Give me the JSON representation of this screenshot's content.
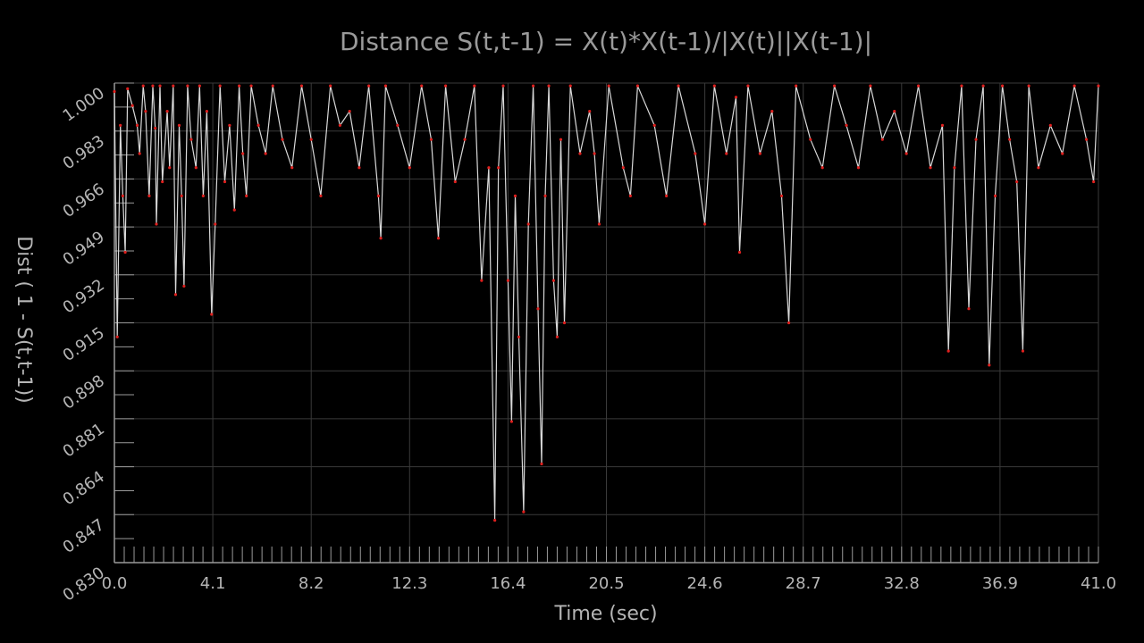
{
  "chart_data": {
    "type": "line",
    "title": "Distance S(t,t-1) = X(t)*X(t-1)/|X(t)||X(t-1)|",
    "xlabel": "Time (sec)",
    "ylabel": "Dist ( 1 - S(t,t-1))",
    "xlim": [
      0.0,
      41.0
    ],
    "ylim": [
      0.83,
      1.0
    ],
    "x_ticks": [
      "0.0",
      "4.1",
      "8.2",
      "12.3",
      "16.4",
      "20.5",
      "24.6",
      "28.7",
      "32.8",
      "36.9",
      "41.0"
    ],
    "y_ticks": [
      "0.830",
      "0.847",
      "0.864",
      "0.881",
      "0.898",
      "0.915",
      "0.932",
      "0.949",
      "0.966",
      "0.983",
      "1.000"
    ],
    "grid": true,
    "colors": {
      "background": "#000000",
      "line": "#d9d9d9",
      "markers": "#e0201e",
      "grid": "#3a3a3a",
      "axis": "#9a9a9a",
      "text": "#b5b5b5"
    },
    "series": [
      {
        "points": [
          [
            0.0,
            0.997
          ],
          [
            0.12,
            0.91
          ],
          [
            0.25,
            0.985
          ],
          [
            0.35,
            0.96
          ],
          [
            0.45,
            0.94
          ],
          [
            0.55,
            0.998
          ],
          [
            0.75,
            0.992
          ],
          [
            0.95,
            0.985
          ],
          [
            1.05,
            0.975
          ],
          [
            1.2,
            0.999
          ],
          [
            1.3,
            0.99
          ],
          [
            1.45,
            0.96
          ],
          [
            1.6,
            0.999
          ],
          [
            1.7,
            0.984
          ],
          [
            1.75,
            0.95
          ],
          [
            1.9,
            0.999
          ],
          [
            2.0,
            0.965
          ],
          [
            2.2,
            0.99
          ],
          [
            2.3,
            0.97
          ],
          [
            2.45,
            0.999
          ],
          [
            2.55,
            0.925
          ],
          [
            2.7,
            0.985
          ],
          [
            2.8,
            0.96
          ],
          [
            2.9,
            0.928
          ],
          [
            3.05,
            0.999
          ],
          [
            3.2,
            0.98
          ],
          [
            3.4,
            0.97
          ],
          [
            3.55,
            0.999
          ],
          [
            3.7,
            0.96
          ],
          [
            3.85,
            0.99
          ],
          [
            4.05,
            0.918
          ],
          [
            4.2,
            0.95
          ],
          [
            4.4,
            0.999
          ],
          [
            4.6,
            0.965
          ],
          [
            4.8,
            0.985
          ],
          [
            5.0,
            0.955
          ],
          [
            5.2,
            0.999
          ],
          [
            5.35,
            0.975
          ],
          [
            5.5,
            0.96
          ],
          [
            5.7,
            0.999
          ],
          [
            6.0,
            0.985
          ],
          [
            6.3,
            0.975
          ],
          [
            6.6,
            0.999
          ],
          [
            7.0,
            0.98
          ],
          [
            7.4,
            0.97
          ],
          [
            7.8,
            0.999
          ],
          [
            8.2,
            0.98
          ],
          [
            8.6,
            0.96
          ],
          [
            9.0,
            0.999
          ],
          [
            9.4,
            0.985
          ],
          [
            9.8,
            0.99
          ],
          [
            10.2,
            0.97
          ],
          [
            10.6,
            0.999
          ],
          [
            11.0,
            0.96
          ],
          [
            11.1,
            0.945
          ],
          [
            11.3,
            0.999
          ],
          [
            11.8,
            0.985
          ],
          [
            12.3,
            0.97
          ],
          [
            12.8,
            0.999
          ],
          [
            13.2,
            0.98
          ],
          [
            13.5,
            0.945
          ],
          [
            13.8,
            0.999
          ],
          [
            14.2,
            0.965
          ],
          [
            14.6,
            0.98
          ],
          [
            15.0,
            0.999
          ],
          [
            15.3,
            0.93
          ],
          [
            15.6,
            0.97
          ],
          [
            15.85,
            0.845
          ],
          [
            16.0,
            0.97
          ],
          [
            16.2,
            0.999
          ],
          [
            16.4,
            0.93
          ],
          [
            16.55,
            0.88
          ],
          [
            16.7,
            0.96
          ],
          [
            16.85,
            0.91
          ],
          [
            17.05,
            0.848
          ],
          [
            17.25,
            0.95
          ],
          [
            17.45,
            0.999
          ],
          [
            17.65,
            0.92
          ],
          [
            17.8,
            0.865
          ],
          [
            17.95,
            0.96
          ],
          [
            18.1,
            0.999
          ],
          [
            18.3,
            0.93
          ],
          [
            18.45,
            0.91
          ],
          [
            18.6,
            0.98
          ],
          [
            18.75,
            0.915
          ],
          [
            19.0,
            0.999
          ],
          [
            19.4,
            0.975
          ],
          [
            19.8,
            0.99
          ],
          [
            20.0,
            0.975
          ],
          [
            20.2,
            0.95
          ],
          [
            20.6,
            0.999
          ],
          [
            21.2,
            0.97
          ],
          [
            21.5,
            0.96
          ],
          [
            21.8,
            0.999
          ],
          [
            22.5,
            0.985
          ],
          [
            23.0,
            0.96
          ],
          [
            23.5,
            0.999
          ],
          [
            24.2,
            0.975
          ],
          [
            24.6,
            0.95
          ],
          [
            25.0,
            0.999
          ],
          [
            25.5,
            0.975
          ],
          [
            25.9,
            0.995
          ],
          [
            26.05,
            0.94
          ],
          [
            26.4,
            0.999
          ],
          [
            26.9,
            0.975
          ],
          [
            27.4,
            0.99
          ],
          [
            27.8,
            0.96
          ],
          [
            28.1,
            0.915
          ],
          [
            28.4,
            0.999
          ],
          [
            29.0,
            0.98
          ],
          [
            29.5,
            0.97
          ],
          [
            30.0,
            0.999
          ],
          [
            30.5,
            0.985
          ],
          [
            31.0,
            0.97
          ],
          [
            31.5,
            0.999
          ],
          [
            32.0,
            0.98
          ],
          [
            32.5,
            0.99
          ],
          [
            33.0,
            0.975
          ],
          [
            33.5,
            0.999
          ],
          [
            34.0,
            0.97
          ],
          [
            34.5,
            0.985
          ],
          [
            34.75,
            0.905
          ],
          [
            35.0,
            0.97
          ],
          [
            35.3,
            0.999
          ],
          [
            35.6,
            0.92
          ],
          [
            35.9,
            0.98
          ],
          [
            36.2,
            0.999
          ],
          [
            36.45,
            0.9
          ],
          [
            36.7,
            0.96
          ],
          [
            37.0,
            0.999
          ],
          [
            37.3,
            0.98
          ],
          [
            37.6,
            0.965
          ],
          [
            37.85,
            0.905
          ],
          [
            38.1,
            0.999
          ],
          [
            38.5,
            0.97
          ],
          [
            39.0,
            0.985
          ],
          [
            39.5,
            0.975
          ],
          [
            40.0,
            0.999
          ],
          [
            40.5,
            0.98
          ],
          [
            40.8,
            0.965
          ],
          [
            41.0,
            0.999
          ]
        ]
      }
    ]
  }
}
